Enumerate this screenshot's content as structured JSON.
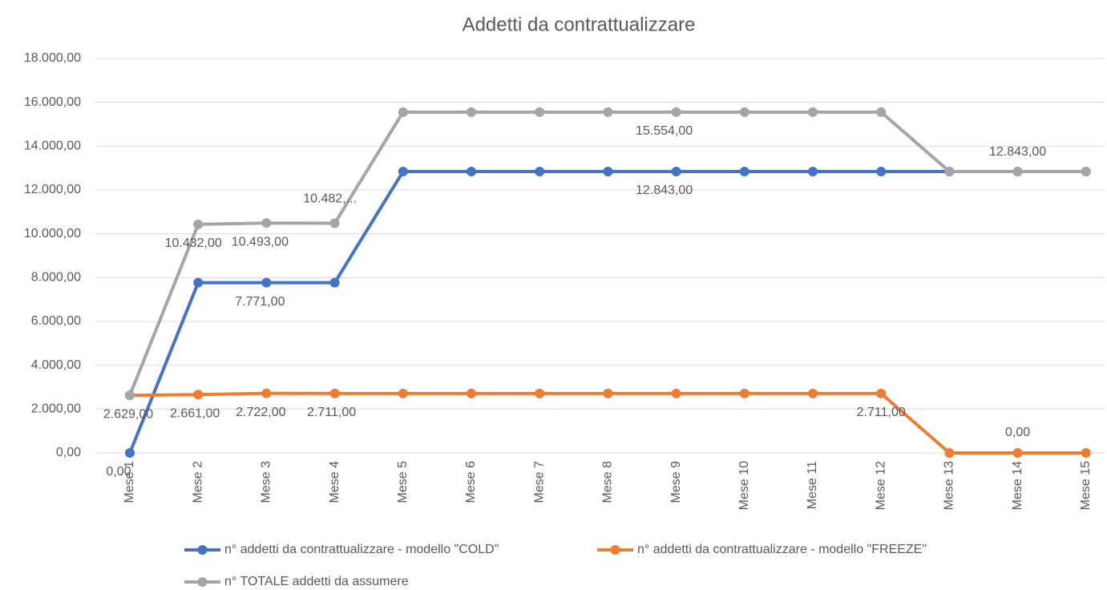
{
  "chart_data": {
    "type": "line",
    "title": "Addetti da contrattualizzare",
    "categories": [
      "Mese 1",
      "Mese 2",
      "Mese 3",
      "Mese 4",
      "Mese 5",
      "Mese 6",
      "Mese 7",
      "Mese 8",
      "Mese 9",
      "Mese 10",
      "Mese 11",
      "Mese 12",
      "Mese 13",
      "Mese 14",
      "Mese 15"
    ],
    "series": [
      {
        "name": "n° addetti da contrattualizzare - modello \"COLD\"",
        "color": "#4472c4",
        "values": [
          0,
          7771,
          7771,
          7771,
          12843,
          12843,
          12843,
          12843,
          12843,
          12843,
          12843,
          12843,
          12843,
          12843,
          12843
        ],
        "value_labels": [
          "0,00",
          null,
          "7.771,00",
          null,
          null,
          null,
          null,
          null,
          "12.843,00",
          null,
          null,
          null,
          null,
          null,
          null
        ]
      },
      {
        "name": "n° addetti da contrattualizzare - modello \"FREEZE\"",
        "color": "#ed7d31",
        "values": [
          2629,
          2661,
          2722,
          2711,
          2711,
          2711,
          2711,
          2711,
          2711,
          2711,
          2711,
          2711,
          0,
          0,
          0
        ],
        "value_labels": [
          "2.629,00",
          "2.661,00",
          "2.722,00",
          "2.711,00",
          null,
          null,
          null,
          null,
          null,
          null,
          null,
          "2.711,00",
          null,
          "0,00",
          null
        ]
      },
      {
        "name": "n° TOTALE addetti da assumere",
        "color": "#a5a5a5",
        "values": [
          2629,
          10432,
          10493,
          10482,
          15554,
          15554,
          15554,
          15554,
          15554,
          15554,
          15554,
          15554,
          12843,
          12843,
          12843
        ],
        "value_labels": [
          null,
          "10.432,00",
          "10.493,00",
          "10.482,...",
          null,
          null,
          null,
          null,
          "15.554,00",
          null,
          null,
          null,
          null,
          "12.843,00",
          null
        ]
      }
    ],
    "ylim": [
      0,
      18000
    ],
    "yticks": [
      {
        "value": 0,
        "label": "0,00"
      },
      {
        "value": 2000,
        "label": "2.000,00"
      },
      {
        "value": 4000,
        "label": "4.000,00"
      },
      {
        "value": 6000,
        "label": "6.000,00"
      },
      {
        "value": 8000,
        "label": "8.000,00"
      },
      {
        "value": 10000,
        "label": "10.000,00"
      },
      {
        "value": 12000,
        "label": "12.000,00"
      },
      {
        "value": 14000,
        "label": "14.000,00"
      },
      {
        "value": 16000,
        "label": "16.000,00"
      },
      {
        "value": 18000,
        "label": "18.000,00"
      }
    ],
    "grid": true,
    "legend": "bottom"
  }
}
